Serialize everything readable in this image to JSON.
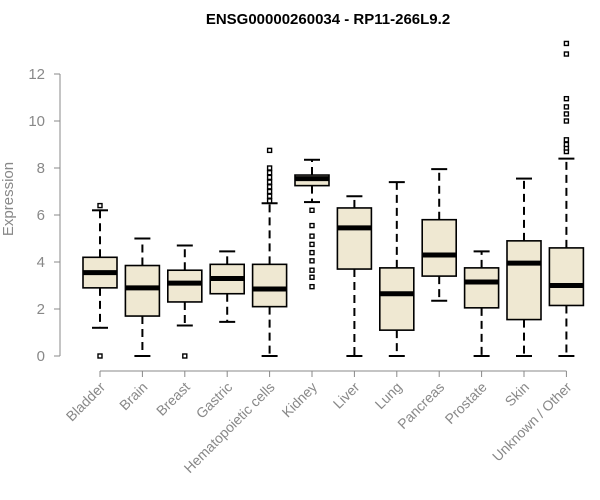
{
  "chart_data": {
    "type": "box",
    "title": "ENSG00000260034 - RP11-266L9.2",
    "xlabel": "",
    "ylabel": "Expression",
    "ylim": [
      0,
      13.5
    ],
    "yticks": [
      0,
      2,
      4,
      6,
      8,
      10,
      12
    ],
    "grid": false,
    "box_fill": "#efe8d2",
    "box_stroke": "#000000",
    "axis_color": "#888888",
    "categories": [
      "Bladder",
      "Brain",
      "Breast",
      "Gastric",
      "Hematopoietic cells",
      "Kidney",
      "Liver",
      "Lung",
      "Pancreas",
      "Prostate",
      "Skin",
      "Unknown / Other"
    ],
    "boxes": [
      {
        "category": "Bladder",
        "whisker_low": 1.2,
        "q1": 2.9,
        "median": 3.55,
        "q3": 4.2,
        "whisker_high": 6.2,
        "outliers": [
          0.0,
          6.4
        ]
      },
      {
        "category": "Brain",
        "whisker_low": 0.0,
        "q1": 1.7,
        "median": 2.9,
        "q3": 3.85,
        "whisker_high": 5.0,
        "outliers": []
      },
      {
        "category": "Breast",
        "whisker_low": 1.3,
        "q1": 2.3,
        "median": 3.1,
        "q3": 3.65,
        "whisker_high": 4.7,
        "outliers": [
          0.0
        ]
      },
      {
        "category": "Gastric",
        "whisker_low": 1.45,
        "q1": 2.65,
        "median": 3.3,
        "q3": 3.9,
        "whisker_high": 4.45,
        "outliers": []
      },
      {
        "category": "Hematopoietic cells",
        "whisker_low": 0.0,
        "q1": 2.1,
        "median": 2.85,
        "q3": 3.9,
        "whisker_high": 6.5,
        "outliers": [
          6.6,
          6.8,
          7.0,
          7.2,
          7.4,
          7.6,
          7.8,
          8.0,
          8.75
        ]
      },
      {
        "category": "Kidney",
        "whisker_low": 6.55,
        "q1": 7.25,
        "median": 7.55,
        "q3": 7.7,
        "whisker_high": 8.35,
        "outliers": [
          2.95,
          3.35,
          3.65,
          4.05,
          4.4,
          4.75,
          5.1,
          5.55,
          6.2
        ]
      },
      {
        "category": "Liver",
        "whisker_low": 0.0,
        "q1": 3.7,
        "median": 5.45,
        "q3": 6.3,
        "whisker_high": 6.8,
        "outliers": []
      },
      {
        "category": "Lung",
        "whisker_low": 0.0,
        "q1": 1.1,
        "median": 2.65,
        "q3": 3.75,
        "whisker_high": 7.4,
        "outliers": []
      },
      {
        "category": "Pancreas",
        "whisker_low": 2.35,
        "q1": 3.4,
        "median": 4.3,
        "q3": 5.8,
        "whisker_high": 7.95,
        "outliers": []
      },
      {
        "category": "Prostate",
        "whisker_low": 0.0,
        "q1": 2.05,
        "median": 3.15,
        "q3": 3.75,
        "whisker_high": 4.45,
        "outliers": []
      },
      {
        "category": "Skin",
        "whisker_low": 0.0,
        "q1": 1.55,
        "median": 3.95,
        "q3": 4.9,
        "whisker_high": 7.55,
        "outliers": []
      },
      {
        "category": "Unknown / Other",
        "whisker_low": 0.0,
        "q1": 2.15,
        "median": 3.0,
        "q3": 4.6,
        "whisker_high": 8.4,
        "outliers": [
          8.7,
          8.85,
          9.0,
          9.2,
          10.0,
          10.3,
          10.6,
          10.95,
          12.85,
          13.3
        ]
      }
    ]
  }
}
